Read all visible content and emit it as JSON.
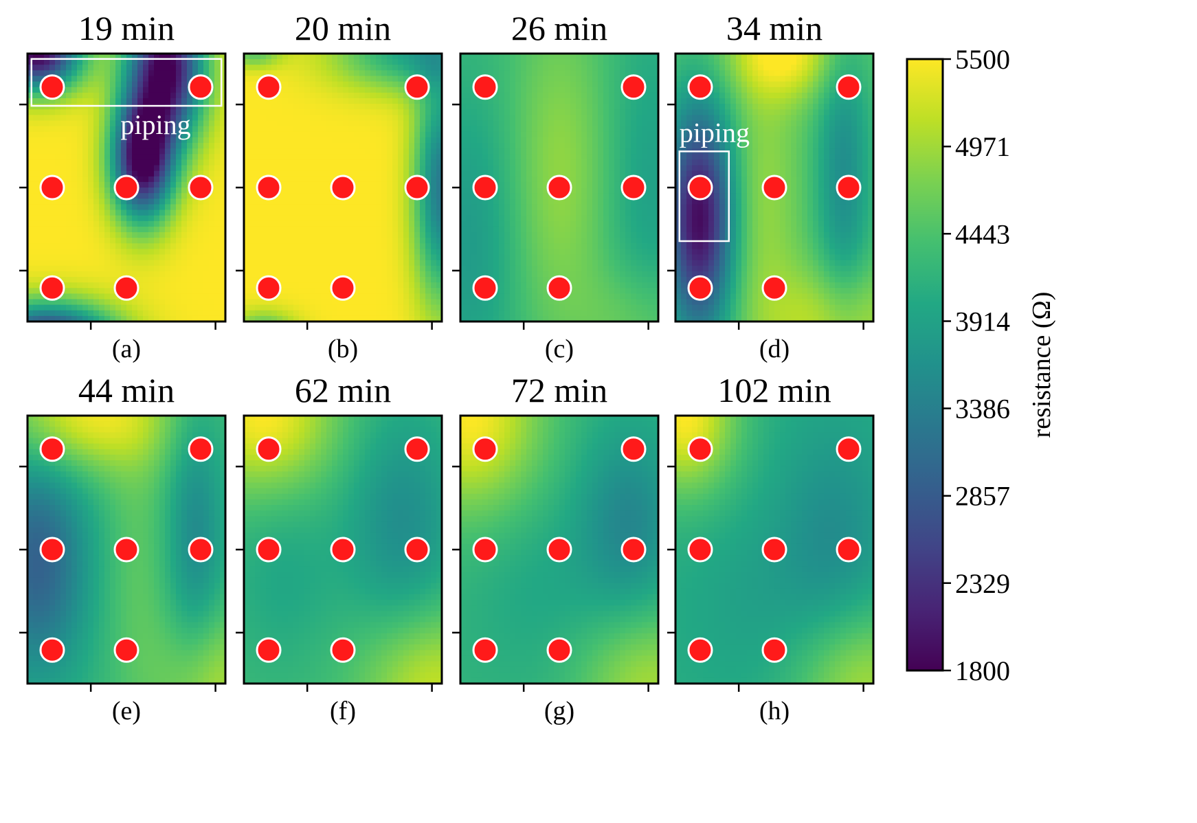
{
  "chart_data": {
    "type": "heatmap",
    "colorbar": {
      "label": "resistance (Ω)",
      "min": 1800,
      "max": 5500,
      "ticks": [
        5500,
        4971,
        4443,
        3914,
        3386,
        2857,
        2329,
        1800
      ],
      "colormap": "viridis"
    },
    "electrode_color": "#ff1a1a",
    "annotation_color": "#ffffff",
    "panels": [
      {
        "label": "(a)",
        "title": "19 min",
        "annotation": "piping",
        "field": {
          "base": 5500,
          "blobs": [
            {
              "x": 0.7,
              "y": 0.05,
              "sx": 0.14,
              "sy": 0.2,
              "a": -3700
            },
            {
              "x": 0.58,
              "y": 0.4,
              "sx": 0.11,
              "sy": 0.16,
              "a": -3700
            },
            {
              "x": 0.05,
              "y": 0.0,
              "sx": 0.16,
              "sy": 0.1,
              "a": -3700
            },
            {
              "x": 0.1,
              "y": 1.08,
              "sx": 0.24,
              "sy": 0.1,
              "a": -3700
            }
          ]
        }
      },
      {
        "label": "(b)",
        "title": "20 min",
        "annotation": "",
        "field": {
          "base": 5500,
          "blobs": [
            {
              "x": 1.0,
              "y": 0.5,
              "sx": 0.1,
              "sy": 0.3,
              "a": -2200
            },
            {
              "x": 0.85,
              "y": 0.0,
              "sx": 0.28,
              "sy": 0.1,
              "a": -1500
            },
            {
              "x": 0.05,
              "y": 0.0,
              "sx": 0.1,
              "sy": 0.04,
              "a": -900
            },
            {
              "x": 0.1,
              "y": 1.05,
              "sx": 0.12,
              "sy": 0.06,
              "a": -1200
            }
          ]
        }
      },
      {
        "label": "(c)",
        "title": "26 min",
        "annotation": "",
        "field": {
          "base": 4300,
          "blobs": [
            {
              "x": 0.5,
              "y": 0.45,
              "sx": 0.18,
              "sy": 0.45,
              "a": 600
            },
            {
              "x": 0.05,
              "y": 0.7,
              "sx": 0.18,
              "sy": 0.4,
              "a": -500
            },
            {
              "x": 0.95,
              "y": 0.5,
              "sx": 0.15,
              "sy": 0.45,
              "a": -400
            },
            {
              "x": 0.9,
              "y": 1.0,
              "sx": 0.2,
              "sy": 0.15,
              "a": 400
            }
          ]
        }
      },
      {
        "label": "(d)",
        "title": "34 min",
        "annotation": "piping",
        "field": {
          "base": 4500,
          "blobs": [
            {
              "x": 0.12,
              "y": 0.62,
              "sx": 0.12,
              "sy": 0.3,
              "a": -2600
            },
            {
              "x": 0.85,
              "y": 0.45,
              "sx": 0.1,
              "sy": 0.4,
              "a": -900
            },
            {
              "x": 0.55,
              "y": 0.0,
              "sx": 0.2,
              "sy": 0.12,
              "a": 1000
            },
            {
              "x": 0.8,
              "y": 1.0,
              "sx": 0.25,
              "sy": 0.15,
              "a": 700
            },
            {
              "x": 0.45,
              "y": 0.55,
              "sx": 0.12,
              "sy": 0.4,
              "a": 400
            }
          ]
        }
      },
      {
        "label": "(e)",
        "title": "44 min",
        "annotation": "",
        "field": {
          "base": 4250,
          "blobs": [
            {
              "x": 0.05,
              "y": 0.55,
              "sx": 0.18,
              "sy": 0.3,
              "a": -1300
            },
            {
              "x": 0.3,
              "y": 0.0,
              "sx": 0.3,
              "sy": 0.15,
              "a": 1200
            },
            {
              "x": 0.85,
              "y": 0.45,
              "sx": 0.1,
              "sy": 0.35,
              "a": -700
            },
            {
              "x": 0.95,
              "y": 1.0,
              "sx": 0.2,
              "sy": 0.2,
              "a": 800
            },
            {
              "x": 0.55,
              "y": 0.55,
              "sx": 0.12,
              "sy": 0.45,
              "a": 300
            }
          ]
        }
      },
      {
        "label": "(f)",
        "title": "62 min",
        "annotation": "",
        "field": {
          "base": 4300,
          "blobs": [
            {
              "x": 0.1,
              "y": 0.0,
              "sx": 0.25,
              "sy": 0.2,
              "a": 1200
            },
            {
              "x": 0.8,
              "y": 0.4,
              "sx": 0.2,
              "sy": 0.3,
              "a": -700
            },
            {
              "x": 0.95,
              "y": 1.0,
              "sx": 0.25,
              "sy": 0.2,
              "a": 900
            },
            {
              "x": 0.2,
              "y": 0.6,
              "sx": 0.2,
              "sy": 0.25,
              "a": -300
            }
          ]
        }
      },
      {
        "label": "(g)",
        "title": "72 min",
        "annotation": "",
        "field": {
          "base": 4200,
          "blobs": [
            {
              "x": 0.05,
              "y": 0.0,
              "sx": 0.25,
              "sy": 0.25,
              "a": 1300
            },
            {
              "x": 0.85,
              "y": 0.4,
              "sx": 0.18,
              "sy": 0.25,
              "a": -700
            },
            {
              "x": 0.95,
              "y": 1.0,
              "sx": 0.25,
              "sy": 0.2,
              "a": 800
            },
            {
              "x": 0.4,
              "y": 0.65,
              "sx": 0.25,
              "sy": 0.25,
              "a": -200
            }
          ]
        }
      },
      {
        "label": "(h)",
        "title": "102 min",
        "annotation": "",
        "field": {
          "base": 4100,
          "blobs": [
            {
              "x": 0.05,
              "y": 0.0,
              "sx": 0.18,
              "sy": 0.2,
              "a": 1400
            },
            {
              "x": 0.8,
              "y": 0.45,
              "sx": 0.2,
              "sy": 0.3,
              "a": -500
            },
            {
              "x": 0.95,
              "y": 1.0,
              "sx": 0.25,
              "sy": 0.2,
              "a": 900
            },
            {
              "x": 0.4,
              "y": 0.7,
              "sx": 0.25,
              "sy": 0.25,
              "a": -200
            }
          ]
        }
      }
    ],
    "electrodes": [
      {
        "x": 0.125,
        "y": 0.125
      },
      {
        "x": 0.875,
        "y": 0.125
      },
      {
        "x": 0.125,
        "y": 0.5
      },
      {
        "x": 0.5,
        "y": 0.5
      },
      {
        "x": 0.875,
        "y": 0.5
      },
      {
        "x": 0.125,
        "y": 0.875
      },
      {
        "x": 0.5,
        "y": 0.875
      }
    ],
    "annotation_boxes": {
      "(a)": {
        "x0": 0.02,
        "y0": 0.02,
        "x1": 0.98,
        "y1": 0.195
      },
      "(d)": {
        "x0": 0.02,
        "y0": 0.365,
        "x1": 0.27,
        "y1": 0.7
      }
    },
    "yticks": [
      0.19,
      0.5,
      0.81
    ],
    "xticks": [
      0.32,
      0.95
    ]
  }
}
